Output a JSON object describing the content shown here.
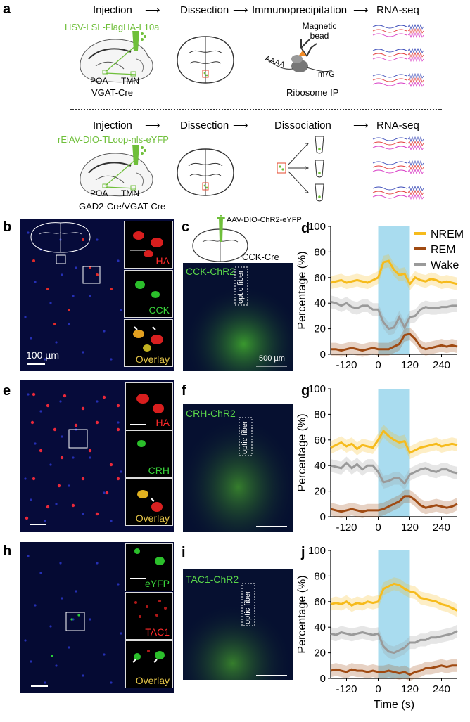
{
  "panels": {
    "a": "a",
    "b": "b",
    "c": "c",
    "d": "d",
    "e": "e",
    "f": "f",
    "g": "g",
    "h": "h",
    "i": "i",
    "j": "j"
  },
  "workflow_top": {
    "steps": [
      "Injection",
      "Dissection",
      "Immunoprecipitation",
      "RNA-seq"
    ],
    "virus": "HSV-LSL-FlagHA-L10a",
    "poa": "POA",
    "tmn": "TMN",
    "mouse": "VGAT-Cre",
    "bead": "Magnetic bead",
    "aaaa": "AAAA",
    "cap": "m7G",
    "ip": "Ribosome IP"
  },
  "workflow_bottom": {
    "steps": [
      "Injection",
      "Dissection",
      "Dissociation",
      "RNA-seq"
    ],
    "virus": "rElAV-DIO-TLoop-nls-eYFP",
    "poa": "POA",
    "tmn": "TMN",
    "mouse": "GAD2-Cre/VGAT-Cre"
  },
  "rows": [
    {
      "insets": [
        "HA",
        "CCK",
        "Overlay"
      ],
      "scale": "100 µm",
      "opto_label": "CCK-ChR2",
      "fiber": "optic fiber",
      "virus": "AAV-DIO-ChR2-eYFP",
      "mouse": "CCK-Cre",
      "scale2": "500 µm"
    },
    {
      "insets": [
        "HA",
        "CRH",
        "Overlay"
      ],
      "opto_label": "CRH-ChR2",
      "fiber": "optic fiber"
    },
    {
      "insets": [
        "eYFP",
        "TAC1",
        "Overlay"
      ],
      "opto_label": "TAC1-ChR2",
      "fiber": "optic fiber"
    }
  ],
  "colors": {
    "nrem": "#f6bb1c",
    "rem": "#a04a12",
    "wake": "#9a9a9a",
    "stim": "#a9dcef",
    "red": "#ff2a2a",
    "green": "#39d43a"
  },
  "chart_data": [
    {
      "type": "line",
      "panel": "d",
      "ylabel": "Percentage (%)",
      "xlabel": "",
      "ylim": [
        0,
        100
      ],
      "xlim": [
        -180,
        300
      ],
      "yticks": [
        0,
        20,
        40,
        60,
        80,
        100
      ],
      "xticks": [
        -120,
        0,
        120,
        240
      ],
      "stim": [
        0,
        120
      ],
      "legend": [
        "NREM",
        "REM",
        "Wake"
      ],
      "x": [
        -180,
        -160,
        -140,
        -120,
        -100,
        -80,
        -60,
        -40,
        -20,
        0,
        20,
        40,
        60,
        80,
        100,
        120,
        140,
        160,
        180,
        200,
        220,
        240,
        260,
        280,
        300
      ],
      "series": [
        {
          "name": "NREM",
          "values": [
            56,
            57,
            58,
            56,
            57,
            58,
            57,
            56,
            58,
            60,
            72,
            73,
            66,
            62,
            63,
            55,
            60,
            58,
            57,
            59,
            58,
            56,
            57,
            56,
            55
          ]
        },
        {
          "name": "REM",
          "values": [
            4,
            4,
            3,
            4,
            5,
            4,
            3,
            4,
            5,
            4,
            4,
            4,
            6,
            8,
            15,
            16,
            12,
            6,
            4,
            5,
            6,
            7,
            6,
            7,
            6
          ]
        },
        {
          "name": "Wake",
          "values": [
            41,
            40,
            38,
            40,
            37,
            36,
            38,
            38,
            35,
            35,
            25,
            20,
            21,
            29,
            21,
            29,
            30,
            35,
            37,
            36,
            36,
            37,
            37,
            38,
            38
          ]
        }
      ]
    },
    {
      "type": "line",
      "panel": "g",
      "ylabel": "Percentage (%)",
      "xlabel": "",
      "ylim": [
        0,
        100
      ],
      "xlim": [
        -180,
        300
      ],
      "yticks": [
        0,
        20,
        40,
        60,
        80,
        100
      ],
      "xticks": [
        -120,
        0,
        120,
        240
      ],
      "stim": [
        0,
        120
      ],
      "x": [
        -180,
        -160,
        -140,
        -120,
        -100,
        -80,
        -60,
        -40,
        -20,
        0,
        20,
        40,
        60,
        80,
        100,
        120,
        140,
        160,
        180,
        200,
        220,
        240,
        260,
        280,
        300
      ],
      "series": [
        {
          "name": "NREM",
          "values": [
            54,
            56,
            58,
            55,
            57,
            53,
            56,
            55,
            54,
            60,
            67,
            63,
            60,
            58,
            59,
            50,
            52,
            54,
            55,
            56,
            57,
            55,
            56,
            57,
            56
          ]
        },
        {
          "name": "REM",
          "values": [
            6,
            5,
            4,
            5,
            6,
            5,
            4,
            5,
            5,
            5,
            6,
            8,
            10,
            12,
            16,
            16,
            13,
            9,
            7,
            8,
            9,
            8,
            7,
            8,
            10
          ]
        },
        {
          "name": "Wake",
          "values": [
            40,
            39,
            38,
            42,
            38,
            41,
            37,
            40,
            40,
            35,
            27,
            28,
            30,
            30,
            26,
            33,
            35,
            37,
            38,
            36,
            35,
            37,
            37,
            35,
            34
          ]
        }
      ]
    },
    {
      "type": "line",
      "panel": "j",
      "ylabel": "Percentage (%)",
      "xlabel": "Time (s)",
      "ylim": [
        0,
        100
      ],
      "xlim": [
        -180,
        300
      ],
      "yticks": [
        0,
        20,
        40,
        60,
        80,
        100
      ],
      "xticks": [
        -120,
        0,
        120,
        240
      ],
      "stim": [
        0,
        120
      ],
      "x": [
        -180,
        -160,
        -140,
        -120,
        -100,
        -80,
        -60,
        -40,
        -20,
        0,
        20,
        40,
        60,
        80,
        100,
        120,
        140,
        160,
        180,
        200,
        220,
        240,
        260,
        280,
        300
      ],
      "series": [
        {
          "name": "NREM",
          "values": [
            58,
            59,
            58,
            60,
            57,
            59,
            58,
            60,
            59,
            60,
            70,
            72,
            74,
            73,
            70,
            68,
            67,
            63,
            62,
            61,
            60,
            58,
            57,
            55,
            53
          ]
        },
        {
          "name": "REM",
          "values": [
            6,
            7,
            6,
            5,
            7,
            6,
            6,
            5,
            6,
            5,
            5,
            6,
            5,
            4,
            5,
            3,
            5,
            6,
            8,
            8,
            9,
            10,
            9,
            10,
            10
          ]
        },
        {
          "name": "Wake",
          "values": [
            35,
            34,
            36,
            35,
            34,
            35,
            36,
            35,
            34,
            35,
            25,
            21,
            20,
            22,
            24,
            28,
            28,
            30,
            30,
            32,
            32,
            33,
            34,
            35,
            37
          ]
        }
      ]
    }
  ]
}
